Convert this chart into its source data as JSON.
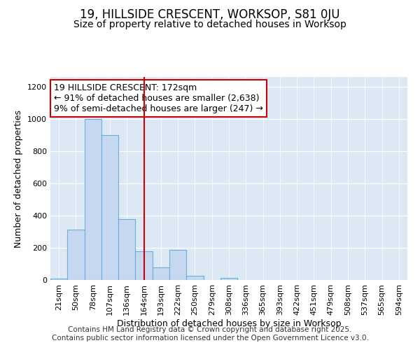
{
  "title": "19, HILLSIDE CRESCENT, WORKSOP, S81 0JU",
  "subtitle": "Size of property relative to detached houses in Worksop",
  "xlabel": "Distribution of detached houses by size in Worksop",
  "ylabel": "Number of detached properties",
  "categories": [
    "21sqm",
    "50sqm",
    "78sqm",
    "107sqm",
    "136sqm",
    "164sqm",
    "193sqm",
    "222sqm",
    "250sqm",
    "279sqm",
    "308sqm",
    "336sqm",
    "365sqm",
    "393sqm",
    "422sqm",
    "451sqm",
    "479sqm",
    "508sqm",
    "537sqm",
    "565sqm",
    "594sqm"
  ],
  "values": [
    10,
    315,
    1000,
    900,
    380,
    180,
    80,
    185,
    25,
    2,
    15,
    2,
    2,
    2,
    2,
    2,
    2,
    2,
    2,
    2,
    2
  ],
  "bar_color": "#c5d8f0",
  "bar_edge_color": "#6baed6",
  "property_line_index": 5,
  "property_line_color": "#cc0000",
  "annotation_text": "19 HILLSIDE CRESCENT: 172sqm\n← 91% of detached houses are smaller (2,638)\n9% of semi-detached houses are larger (247) →",
  "annotation_box_color": "#cc0000",
  "ylim": [
    0,
    1260
  ],
  "yticks": [
    0,
    200,
    400,
    600,
    800,
    1000,
    1200
  ],
  "fig_bg_color": "#ffffff",
  "plot_bg_color": "#dce9f5",
  "footer_text": "Contains HM Land Registry data © Crown copyright and database right 2025.\nContains public sector information licensed under the Open Government Licence v3.0.",
  "title_fontsize": 12,
  "subtitle_fontsize": 10,
  "xlabel_fontsize": 9,
  "ylabel_fontsize": 9,
  "tick_fontsize": 8,
  "annotation_fontsize": 9,
  "footer_fontsize": 7.5
}
